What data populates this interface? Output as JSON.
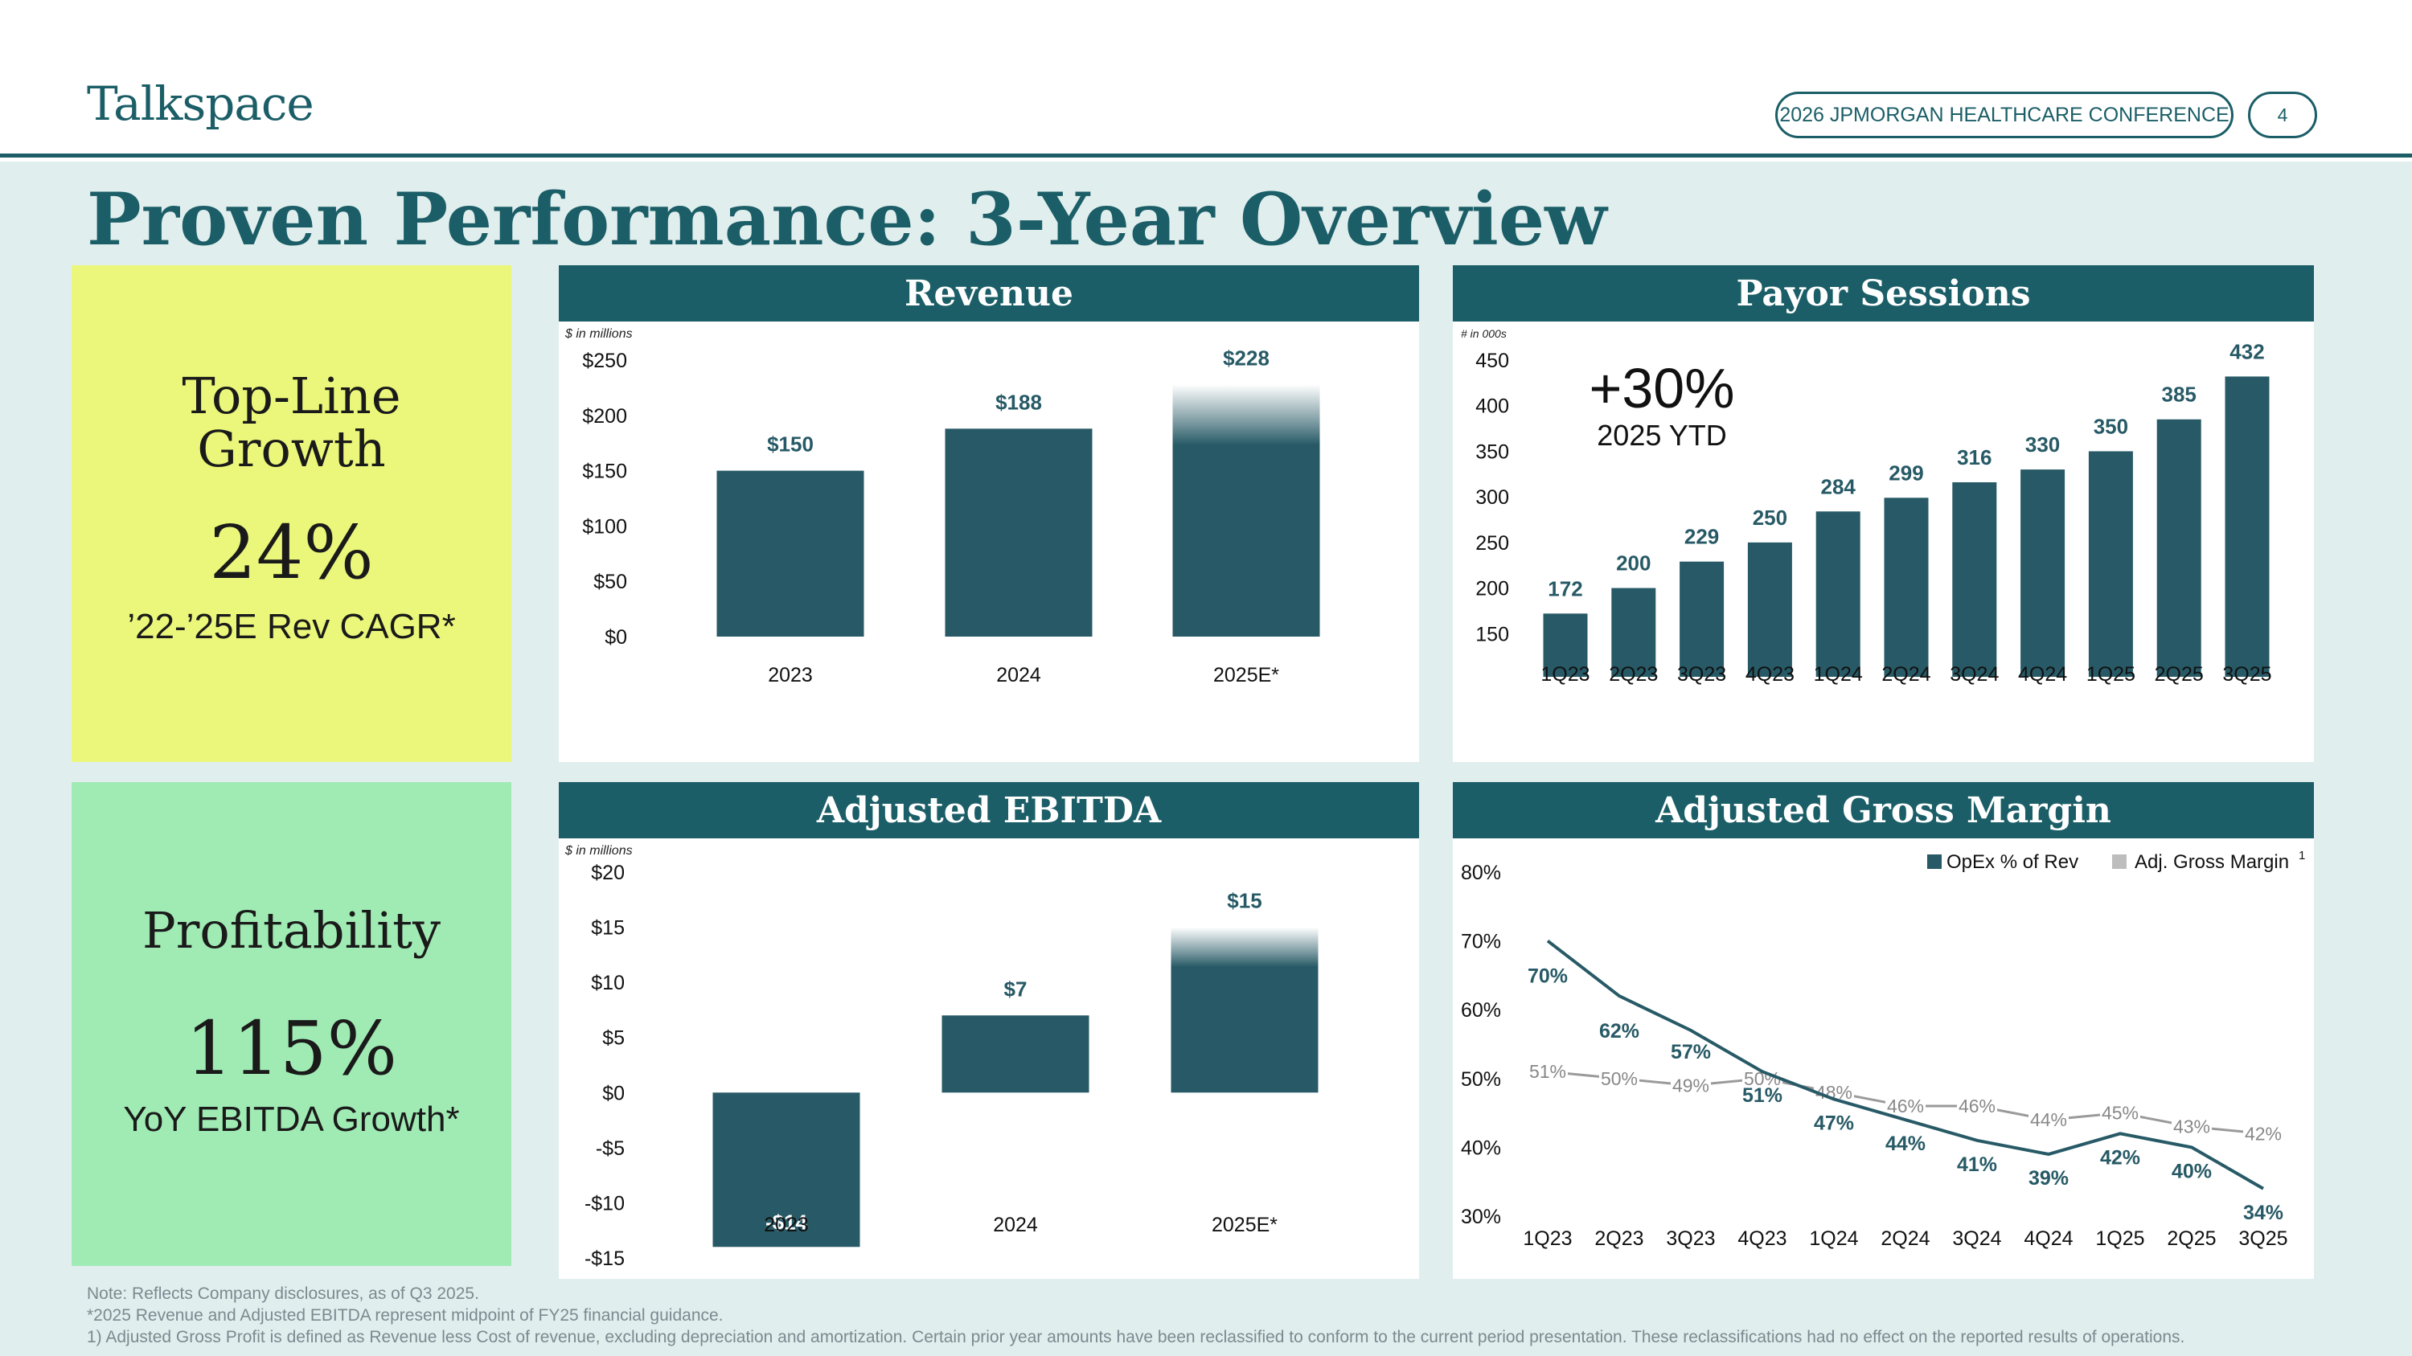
{
  "header": {
    "logo": "Talkspace",
    "conference": "2026 JPMORGAN HEALTHCARE CONFERENCE",
    "page_number": "4"
  },
  "title": "Proven Performance: 3-Year Overview",
  "kpis": [
    {
      "label_line1": "Top-Line",
      "label_line2": "Growth",
      "value": "24%",
      "sub": "’22-’25E Rev CAGR*",
      "color": "#ebf77a"
    },
    {
      "label_line1": "Profitability",
      "label_line2": "",
      "value": "115%",
      "sub": "YoY EBITDA Growth*",
      "color": "#a0ebb4"
    }
  ],
  "colors": {
    "primary": "#1b5e67",
    "bar": "#275a66",
    "gray_line": "#9a9a9a",
    "background": "#e1eeee"
  },
  "chart_data": [
    {
      "type": "bar",
      "title": "Revenue",
      "unit_note": "$ in millions",
      "categories": [
        "2023",
        "2024",
        "2025E*"
      ],
      "values": [
        150,
        188,
        228
      ],
      "value_labels": [
        "$150",
        "$188",
        "$228"
      ],
      "estimate_index": 2,
      "ylim": [
        0,
        250
      ],
      "yticks": [
        0,
        50,
        100,
        150,
        200,
        250
      ],
      "ytick_labels": [
        "$0",
        "$50",
        "$100",
        "$150",
        "$200",
        "$250"
      ],
      "grid": false
    },
    {
      "type": "bar",
      "title": "Payor Sessions",
      "unit_note": "# in 000s",
      "categories": [
        "1Q23",
        "2Q23",
        "3Q23",
        "4Q23",
        "1Q24",
        "2Q24",
        "3Q24",
        "4Q24",
        "1Q25",
        "2Q25",
        "3Q25"
      ],
      "values": [
        172,
        200,
        229,
        250,
        284,
        299,
        316,
        330,
        350,
        385,
        432
      ],
      "value_labels": [
        "172",
        "200",
        "229",
        "250",
        "284",
        "299",
        "316",
        "330",
        "350",
        "385",
        "432"
      ],
      "ylim": [
        100,
        450
      ],
      "yticks": [
        150,
        200,
        250,
        300,
        350,
        400,
        450
      ],
      "ytick_labels": [
        "150",
        "200",
        "250",
        "300",
        "350",
        "400",
        "450"
      ],
      "annotation": {
        "value": "+30%",
        "sub": "2025 YTD"
      },
      "grid": false
    },
    {
      "type": "bar",
      "title": "Adjusted EBITDA",
      "unit_note": "$ in millions",
      "categories": [
        "2023",
        "2024",
        "2025E*"
      ],
      "values": [
        -14,
        7,
        15
      ],
      "value_labels": [
        "-$14",
        "$7",
        "$15"
      ],
      "estimate_index": 2,
      "ylim": [
        -15,
        20
      ],
      "yticks": [
        -15,
        -10,
        -5,
        0,
        5,
        10,
        15,
        20
      ],
      "ytick_labels": [
        "-$15",
        "-$10",
        "-$5",
        "$0",
        "$5",
        "$10",
        "$15",
        "$20"
      ],
      "grid": false
    },
    {
      "type": "line",
      "title": "Adjusted Gross Margin",
      "categories": [
        "1Q23",
        "2Q23",
        "3Q23",
        "4Q23",
        "1Q24",
        "2Q24",
        "3Q24",
        "4Q24",
        "1Q25",
        "2Q25",
        "3Q25"
      ],
      "series": [
        {
          "name": "OpEx % of Rev",
          "values": [
            70,
            62,
            57,
            51,
            47,
            44,
            41,
            39,
            42,
            40,
            34
          ],
          "color": "#275a66"
        },
        {
          "name": "Adj. Gross Margin",
          "name_sup": "1",
          "values": [
            51,
            50,
            49,
            50,
            48,
            46,
            46,
            44,
            45,
            43,
            42
          ],
          "color": "#9a9a9a"
        }
      ],
      "ylim": [
        30,
        80
      ],
      "yticks": [
        30,
        40,
        50,
        60,
        70,
        80
      ],
      "ytick_labels": [
        "30%",
        "40%",
        "50%",
        "60%",
        "70%",
        "80%"
      ],
      "legend": "top-right",
      "grid": false
    }
  ],
  "footnotes": [
    "Note: Reflects Company disclosures, as of Q3 2025.",
    "*2025 Revenue and Adjusted EBITDA represent midpoint of FY25 financial guidance.",
    "1) Adjusted Gross Profit is defined as Revenue less Cost of revenue, excluding depreciation and amortization. Certain prior year amounts have been reclassified to conform to the current period presentation. These reclassifications had no effect on the reported results of operations."
  ]
}
